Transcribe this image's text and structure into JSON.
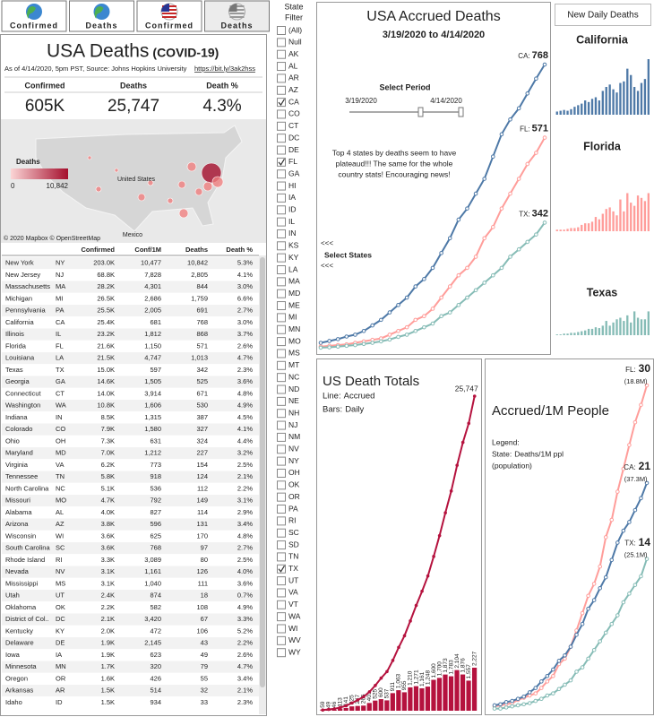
{
  "tabs": [
    "Confirmed",
    "Deaths",
    "Confirmed",
    "Deaths"
  ],
  "header": {
    "title": "USA Deaths",
    "subtitle": "(COVID-19)",
    "source": "As of 4/14/2020, 5pm PST, Source: Johns Hopkins University",
    "link": "https://bit.ly/3ak2hss"
  },
  "kpis": [
    {
      "label": "Confirmed",
      "value": "605K"
    },
    {
      "label": "Deaths",
      "value": "25,747"
    },
    {
      "label": "Death %",
      "value": "4.3%"
    }
  ],
  "map": {
    "legend_title": "Deaths",
    "legend_min": "0",
    "legend_max": "10,842",
    "country": "United States",
    "neighbor": "Mexico",
    "attribution": "© 2020 Mapbox  © OpenStreetMap"
  },
  "table": {
    "columns": [
      "Confirmed",
      "Conf/1M",
      "Deaths",
      "Death %"
    ],
    "rows": [
      [
        "New York",
        "NY",
        "203.0K",
        "10,477",
        "10,842",
        "5.3%"
      ],
      [
        "New Jersey",
        "NJ",
        "68.8K",
        "7,828",
        "2,805",
        "4.1%"
      ],
      [
        "Massachusetts",
        "MA",
        "28.2K",
        "4,301",
        "844",
        "3.0%"
      ],
      [
        "Michigan",
        "MI",
        "26.5K",
        "2,686",
        "1,759",
        "6.6%"
      ],
      [
        "Pennsylvania",
        "PA",
        "25.5K",
        "2,005",
        "691",
        "2.7%"
      ],
      [
        "California",
        "CA",
        "25.4K",
        "681",
        "768",
        "3.0%"
      ],
      [
        "Illinois",
        "IL",
        "23.2K",
        "1,812",
        "868",
        "3.7%"
      ],
      [
        "Florida",
        "FL",
        "21.6K",
        "1,150",
        "571",
        "2.6%"
      ],
      [
        "Louisiana",
        "LA",
        "21.5K",
        "4,747",
        "1,013",
        "4.7%"
      ],
      [
        "Texas",
        "TX",
        "15.0K",
        "597",
        "342",
        "2.3%"
      ],
      [
        "Georgia",
        "GA",
        "14.6K",
        "1,505",
        "525",
        "3.6%"
      ],
      [
        "Connecticut",
        "CT",
        "14.0K",
        "3,914",
        "671",
        "4.8%"
      ],
      [
        "Washington",
        "WA",
        "10.8K",
        "1,606",
        "530",
        "4.9%"
      ],
      [
        "Indiana",
        "IN",
        "8.5K",
        "1,315",
        "387",
        "4.5%"
      ],
      [
        "Colorado",
        "CO",
        "7.9K",
        "1,580",
        "327",
        "4.1%"
      ],
      [
        "Ohio",
        "OH",
        "7.3K",
        "631",
        "324",
        "4.4%"
      ],
      [
        "Maryland",
        "MD",
        "7.0K",
        "1,212",
        "227",
        "3.2%"
      ],
      [
        "Virginia",
        "VA",
        "6.2K",
        "773",
        "154",
        "2.5%"
      ],
      [
        "Tennessee",
        "TN",
        "5.8K",
        "918",
        "124",
        "2.1%"
      ],
      [
        "North Carolina",
        "NC",
        "5.1K",
        "536",
        "112",
        "2.2%"
      ],
      [
        "Missouri",
        "MO",
        "4.7K",
        "792",
        "149",
        "3.1%"
      ],
      [
        "Alabama",
        "AL",
        "4.0K",
        "827",
        "114",
        "2.9%"
      ],
      [
        "Arizona",
        "AZ",
        "3.8K",
        "596",
        "131",
        "3.4%"
      ],
      [
        "Wisconsin",
        "WI",
        "3.6K",
        "625",
        "170",
        "4.8%"
      ],
      [
        "South Carolina",
        "SC",
        "3.6K",
        "768",
        "97",
        "2.7%"
      ],
      [
        "Rhode Island",
        "RI",
        "3.3K",
        "3,089",
        "80",
        "2.5%"
      ],
      [
        "Nevada",
        "NV",
        "3.1K",
        "1,161",
        "126",
        "4.0%"
      ],
      [
        "Mississippi",
        "MS",
        "3.1K",
        "1,040",
        "111",
        "3.6%"
      ],
      [
        "Utah",
        "UT",
        "2.4K",
        "874",
        "18",
        "0.7%"
      ],
      [
        "Oklahoma",
        "OK",
        "2.2K",
        "582",
        "108",
        "4.9%"
      ],
      [
        "District of Col..",
        "DC",
        "2.1K",
        "3,420",
        "67",
        "3.3%"
      ],
      [
        "Kentucky",
        "KY",
        "2.0K",
        "472",
        "106",
        "5.2%"
      ],
      [
        "Delaware",
        "DE",
        "1.9K",
        "2,145",
        "43",
        "2.2%"
      ],
      [
        "Iowa",
        "IA",
        "1.9K",
        "623",
        "49",
        "2.6%"
      ],
      [
        "Minnesota",
        "MN",
        "1.7K",
        "320",
        "79",
        "4.7%"
      ],
      [
        "Oregon",
        "OR",
        "1.6K",
        "426",
        "55",
        "3.4%"
      ],
      [
        "Arkansas",
        "AR",
        "1.5K",
        "514",
        "32",
        "2.1%"
      ],
      [
        "Idaho",
        "ID",
        "1.5K",
        "934",
        "33",
        "2.3%"
      ]
    ]
  },
  "filter": {
    "title": [
      "State",
      "Filter"
    ],
    "items": [
      "(All)",
      "Null",
      "AK",
      "AL",
      "AR",
      "AZ",
      "CA",
      "CO",
      "CT",
      "DC",
      "DE",
      "FL",
      "GA",
      "HI",
      "IA",
      "ID",
      "IL",
      "IN",
      "KS",
      "KY",
      "LA",
      "MA",
      "MD",
      "ME",
      "MI",
      "MN",
      "MO",
      "MS",
      "MT",
      "NC",
      "ND",
      "NE",
      "NH",
      "NJ",
      "NM",
      "NV",
      "NY",
      "OH",
      "OK",
      "OR",
      "PA",
      "RI",
      "SC",
      "SD",
      "TN",
      "TX",
      "UT",
      "VA",
      "VT",
      "WA",
      "WI",
      "WV",
      "WY"
    ],
    "checked": [
      "CA",
      "FL",
      "TX"
    ]
  },
  "period": {
    "label": "Select Period",
    "start": "3/19/2020",
    "end": "4/14/2020"
  },
  "notes": {
    "arrows": "<<<",
    "selector": "Select States",
    "comment": [
      "Top 4 states by deaths seem to have",
      "plateaud!!! The same for the whole",
      "country stats! Encouraging news!"
    ]
  },
  "daily_panel": "New Daily Deaths",
  "chart_data": [
    {
      "type": "line",
      "title": "USA Accrued Deaths",
      "subtitle": "3/19/2020 to 4/14/2020",
      "series": [
        {
          "name": "CA:",
          "color": "#4e79a7",
          "values": [
            18,
            23,
            28,
            35,
            40,
            50,
            65,
            80,
            100,
            120,
            140,
            170,
            190,
            220,
            260,
            300,
            350,
            380,
            420,
            460,
            520,
            580,
            620,
            650,
            690,
            730,
            768
          ]
        },
        {
          "name": "FL:",
          "color": "#ff9d9a",
          "values": [
            8,
            10,
            12,
            14,
            18,
            22,
            26,
            30,
            40,
            50,
            60,
            80,
            90,
            110,
            140,
            170,
            200,
            220,
            250,
            300,
            330,
            380,
            420,
            460,
            500,
            530,
            571
          ]
        },
        {
          "name": "TX:",
          "color": "#86bcb6",
          "values": [
            5,
            6,
            8,
            10,
            12,
            15,
            18,
            22,
            27,
            34,
            40,
            50,
            60,
            70,
            90,
            100,
            120,
            140,
            160,
            180,
            200,
            220,
            250,
            270,
            290,
            310,
            342
          ]
        }
      ]
    },
    {
      "type": "bar",
      "title": "California",
      "color": "#4e79a7",
      "values": [
        4,
        5,
        6,
        5,
        7,
        10,
        12,
        14,
        18,
        16,
        20,
        22,
        18,
        30,
        35,
        38,
        32,
        28,
        40,
        42,
        58,
        50,
        35,
        30,
        40,
        45,
        70
      ]
    },
    {
      "type": "bar",
      "title": "Florida",
      "color": "#ff9d9a",
      "values": [
        2,
        2,
        2,
        3,
        4,
        4,
        5,
        8,
        10,
        10,
        12,
        18,
        15,
        22,
        28,
        30,
        25,
        20,
        40,
        25,
        48,
        36,
        32,
        45,
        42,
        38,
        48
      ]
    },
    {
      "type": "bar",
      "title": "Texas",
      "color": "#86bcb6",
      "values": [
        1,
        1,
        2,
        2,
        3,
        3,
        4,
        5,
        6,
        8,
        8,
        10,
        9,
        12,
        18,
        12,
        16,
        20,
        22,
        18,
        25,
        16,
        30,
        22,
        20,
        20,
        30
      ]
    },
    {
      "type": "combo",
      "title": "US Death Totals",
      "color": "#b5123e",
      "series": [
        {
          "name": "Accrued",
          "legend_prefix": "Line:",
          "values": [
            59,
            108,
            154,
            267,
            408,
            633,
            880,
            1145,
            1546,
            2071,
            2671,
            3208,
            4119,
            5182,
            6137,
            7347,
            8618,
            9779,
            11027,
            12627,
            14327,
            16200,
            17983,
            20087,
            21963,
            23520,
            25747
          ],
          "value_labels": [
            null,
            null,
            null,
            null,
            null,
            null,
            null,
            null,
            null,
            null,
            null,
            null,
            null,
            null,
            null,
            null,
            null,
            null,
            null,
            null,
            null,
            null,
            null,
            null,
            null,
            null,
            "25,747"
          ]
        },
        {
          "name": "Daily",
          "legend_prefix": "Bars:",
          "values": [
            59,
            49,
            46,
            113,
            141,
            225,
            247,
            265,
            401,
            525,
            600,
            537,
            911,
            1063,
            955,
            1210,
            1271,
            1161,
            1248,
            1600,
            1700,
            1873,
            1783,
            2104,
            1876,
            1557,
            2227
          ],
          "value_labels": [
            "59",
            "49",
            "46",
            "113",
            "141",
            "225",
            "247",
            "265",
            "401",
            "525",
            "600",
            "537",
            "911",
            "1,063",
            "955",
            "1,210",
            "1,271",
            "1,161",
            "1,248",
            "1,600",
            "1,700",
            "1,873",
            "1,783",
            "2,104",
            "1,876",
            "1,557",
            "2,227"
          ]
        }
      ]
    },
    {
      "type": "line",
      "title": "Accrued/1M People",
      "legend": [
        "Legend:",
        "State:",
        "Deaths/1M ppl",
        "(population)"
      ],
      "series": [
        {
          "name": "FL:",
          "population": "(18.8M)",
          "color": "#ff9d9a",
          "values": [
            0.4,
            0.5,
            0.6,
            0.7,
            1.0,
            1.2,
            1.4,
            1.6,
            2.1,
            2.7,
            3.2,
            4.3,
            4.8,
            5.9,
            7.4,
            9.0,
            10.6,
            11.7,
            13.3,
            16.0,
            17.6,
            20.2,
            22.3,
            24.5,
            26.6,
            28.2,
            30
          ]
        },
        {
          "name": "CA:",
          "population": "(37.3M)",
          "color": "#4e79a7",
          "values": [
            0.5,
            0.6,
            0.8,
            0.9,
            1.1,
            1.3,
            1.7,
            2.1,
            2.7,
            3.2,
            3.8,
            4.6,
            5.1,
            5.9,
            7.0,
            8.0,
            9.4,
            10.2,
            11.3,
            12.3,
            13.9,
            15.5,
            16.6,
            17.4,
            18.5,
            19.6,
            21
          ]
        },
        {
          "name": "TX:",
          "population": "(25.1M)",
          "color": "#86bcb6",
          "values": [
            0.2,
            0.2,
            0.3,
            0.4,
            0.5,
            0.6,
            0.7,
            0.9,
            1.1,
            1.4,
            1.6,
            2.0,
            2.4,
            2.8,
            3.6,
            4.0,
            4.8,
            5.6,
            6.4,
            7.2,
            8.0,
            8.8,
            10.0,
            10.8,
            11.6,
            12.4,
            14
          ]
        }
      ]
    }
  ]
}
